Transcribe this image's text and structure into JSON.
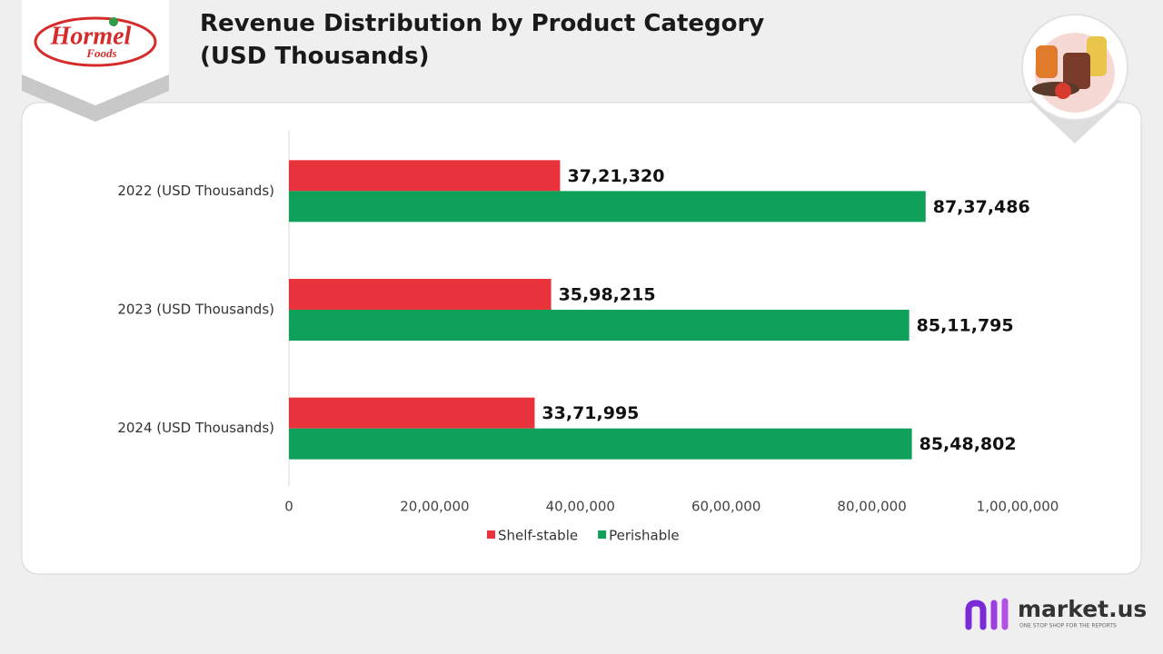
{
  "brand": {
    "logo": "Hormel",
    "logo_sub": "Foods",
    "footer": "market.us",
    "footer_tagline": "ONE STOP SHOP FOR THE REPORTS"
  },
  "chart_data": {
    "type": "bar",
    "orientation": "horizontal",
    "title": "Revenue Distribution by Product Category (USD Thousands)",
    "categories": [
      "2022 (USD Thousands)",
      "2023 (USD Thousands)",
      "2024 (USD Thousands)"
    ],
    "series": [
      {
        "name": "Shelf-stable",
        "color": "#e8323c",
        "values": [
          3721320,
          3598215,
          3371995
        ],
        "value_labels": [
          "37,21,320",
          "35,98,215",
          "33,71,995"
        ]
      },
      {
        "name": "Perishable",
        "color": "#0fa15a",
        "values": [
          8737486,
          8511795,
          8548802
        ],
        "value_labels": [
          "87,37,486",
          "85,11,795",
          "85,48,802"
        ]
      }
    ],
    "xlim": [
      0,
      10000000
    ],
    "xticks": [
      0,
      {
        "value": 2000000,
        "label": "20,00,000"
      },
      {
        "value": 4000000,
        "label": "40,00,000"
      },
      {
        "value": 6000000,
        "label": "60,00,000"
      },
      {
        "value": 8000000,
        "label": "80,00,000"
      },
      {
        "value": 10000000,
        "label": "1,00,00,000"
      }
    ],
    "grid": false,
    "legend": "bottom"
  }
}
